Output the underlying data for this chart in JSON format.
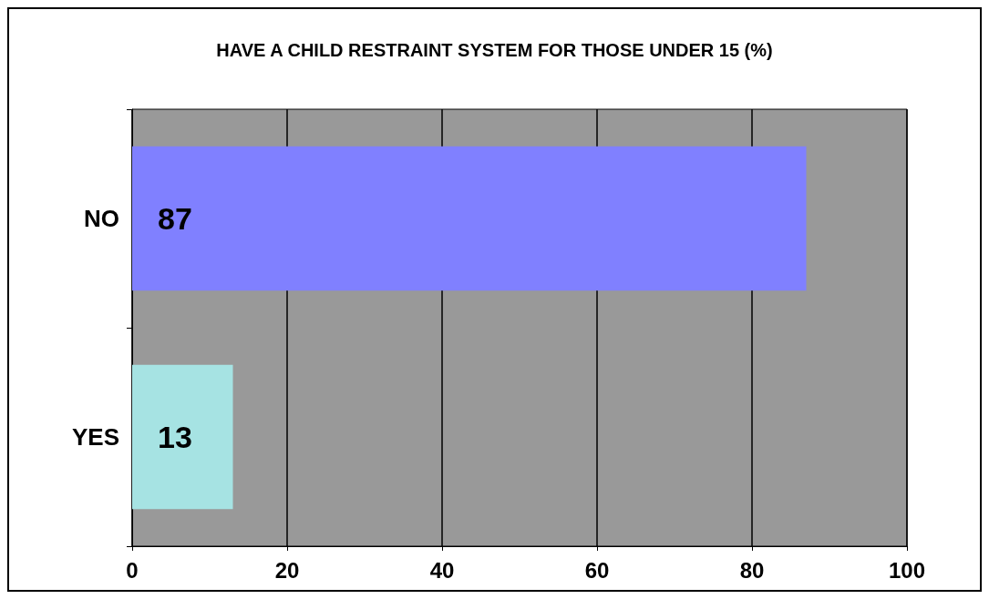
{
  "chart_data": {
    "type": "bar",
    "orientation": "horizontal",
    "title": "HAVE A CHILD RESTRAINT SYSTEM FOR THOSE UNDER 15 (%)",
    "categories": [
      "NO",
      "YES"
    ],
    "values": [
      87,
      13
    ],
    "colors": [
      "#8080ff",
      "#a6e3e3"
    ],
    "xlim": [
      0,
      100
    ],
    "xticks": [
      0,
      20,
      40,
      60,
      80,
      100
    ],
    "grid": "x",
    "data_labels": true
  }
}
